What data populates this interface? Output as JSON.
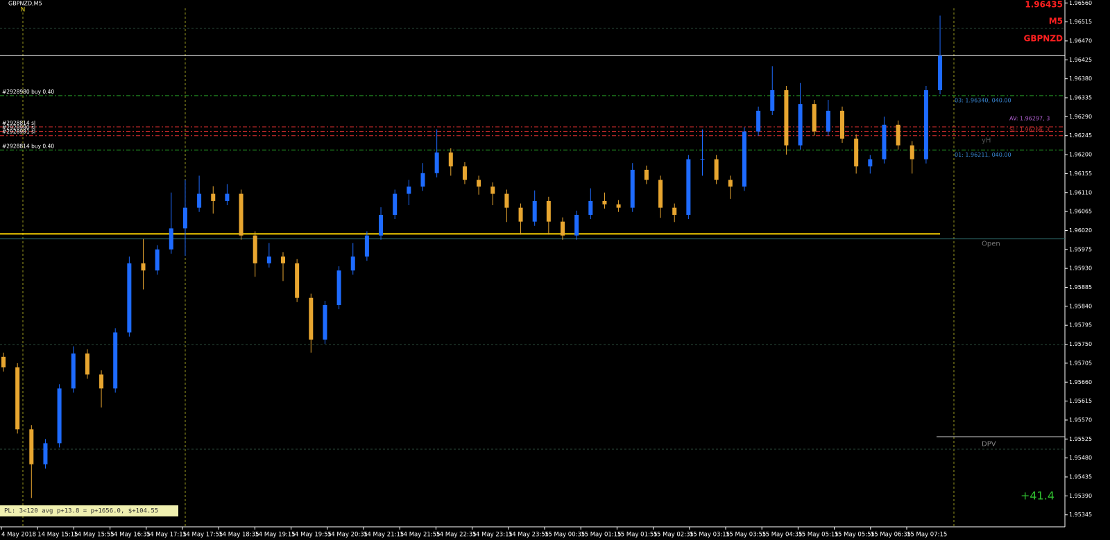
{
  "chart_data": {
    "type": "candlestick",
    "title": "GBPNZD,M5",
    "price_label": "1.96435",
    "timeframe_label": "M5",
    "symbol_label": "GBPNZD",
    "marker_text": "N",
    "profit_text": "+41.4",
    "status_text": "PL: 3<120 avg p+13.8 = p+1656.0, $+104.55",
    "ylim": [
      1.95333,
      1.96567
    ],
    "yticks": [
      {
        "value": 1.9656,
        "label": "1.96560"
      },
      1.96515,
      {
        "value": 1.9647,
        "label": "1.96470"
      },
      1.96425,
      {
        "value": 1.9638,
        "label": "1.96380"
      },
      1.96335,
      {
        "value": 1.9629,
        "label": "1.96290"
      },
      1.96245,
      {
        "value": 1.962,
        "label": "1.96200"
      },
      1.96155,
      {
        "value": 1.9611,
        "label": "1.96110"
      },
      1.96065,
      {
        "value": 1.9602,
        "label": "1.96020"
      },
      1.95975,
      {
        "value": 1.9593,
        "label": "1.95930"
      },
      1.95885,
      {
        "value": 1.9584,
        "label": "1.95840"
      },
      1.95795,
      {
        "value": 1.9575,
        "label": "1.95750"
      },
      1.95705,
      {
        "value": 1.9566,
        "label": "1.95660"
      },
      1.95615,
      {
        "value": 1.9557,
        "label": "1.95570"
      },
      1.95525,
      {
        "value": 1.9548,
        "label": "1.95480"
      },
      1.95435,
      {
        "value": 1.9539,
        "label": "1.95390"
      },
      1.95345
    ],
    "categories": [
      "4 May 2018",
      "14 May 15:15",
      "14 May 15:55",
      "14 May 16:35",
      "14 May 17:15",
      "14 May 17:55",
      "14 May 18:35",
      "14 May 19:15",
      "14 May 19:55",
      "14 May 20:35",
      "14 May 21:15",
      "14 May 21:55",
      "14 May 22:35",
      "14 May 23:15",
      "14 May 23:55",
      "15 May 00:35",
      "15 May 01:15",
      "15 May 01:55",
      "15 May 02:35",
      "15 May 03:15",
      "15 May 03:55",
      "15 May 04:35",
      "15 May 05:15",
      "15 May 05:55",
      "15 May 06:35",
      "15 May 07:15"
    ],
    "bull_color": "#1e6bff",
    "bear_color": "#e8a630",
    "open": [
      1.9572,
      1.95695,
      1.95548,
      1.95465,
      1.95515,
      1.95645,
      1.95728,
      1.95678,
      1.95645,
      1.95778,
      1.95942,
      1.95925,
      1.95975,
      1.96025,
      1.96074,
      1.96107,
      1.9609,
      1.96107,
      1.96008,
      1.95942,
      1.95958,
      1.95942,
      1.9586,
      1.95761,
      1.95843,
      1.95925,
      1.95958,
      1.96008,
      1.96057,
      1.96107,
      1.96124,
      1.96156,
      1.96205,
      1.96172,
      1.9614,
      1.96124,
      1.96107,
      1.96074,
      1.96041,
      1.9609,
      1.96041,
      1.96008,
      1.96057,
      1.9609,
      1.96082,
      1.96074,
      1.96164,
      1.9614,
      1.96074,
      1.96057,
      1.96189,
      1.96189,
      1.9614,
      1.96124,
      1.96255,
      1.96304,
      1.96353,
      1.96222,
      1.9632,
      1.96255,
      1.96304,
      1.96238,
      1.96172,
      1.96189,
      1.96271,
      1.96222,
      1.96189,
      1.96353
    ],
    "high": [
      1.9573,
      1.95705,
      1.95558,
      1.95525,
      1.95655,
      1.95745,
      1.95738,
      1.95688,
      1.95788,
      1.95958,
      1.96,
      1.95985,
      1.9611,
      1.9614,
      1.9615,
      1.96125,
      1.9613,
      1.96117,
      1.96018,
      1.9599,
      1.95968,
      1.95952,
      1.9587,
      1.95853,
      1.95935,
      1.9599,
      1.96018,
      1.96075,
      1.96117,
      1.9614,
      1.9618,
      1.9626,
      1.96215,
      1.96182,
      1.9615,
      1.96134,
      1.96117,
      1.96084,
      1.96115,
      1.961,
      1.96051,
      1.96067,
      1.9612,
      1.9611,
      1.96092,
      1.9618,
      1.96174,
      1.9615,
      1.96084,
      1.96199,
      1.9626,
      1.96199,
      1.9615,
      1.96265,
      1.96314,
      1.9641,
      1.96363,
      1.9637,
      1.9633,
      1.9633,
      1.96314,
      1.96248,
      1.96199,
      1.9629,
      1.96281,
      1.96232,
      1.96363,
      1.9653
    ],
    "low": [
      1.95685,
      1.95538,
      1.95385,
      1.95455,
      1.95505,
      1.95635,
      1.95668,
      1.956,
      1.95635,
      1.95768,
      1.9588,
      1.95915,
      1.95965,
      1.9596,
      1.96064,
      1.9606,
      1.9608,
      1.95998,
      1.9591,
      1.95932,
      1.959,
      1.9585,
      1.9573,
      1.95751,
      1.95833,
      1.95915,
      1.95948,
      1.95998,
      1.96047,
      1.9608,
      1.96114,
      1.96146,
      1.9615,
      1.9613,
      1.96105,
      1.9608,
      1.9604,
      1.9601,
      1.96031,
      1.9601,
      1.95998,
      1.95998,
      1.96047,
      1.96072,
      1.96064,
      1.96064,
      1.9613,
      1.9605,
      1.9604,
      1.96047,
      1.9615,
      1.9613,
      1.96095,
      1.96114,
      1.96245,
      1.96294,
      1.962,
      1.96212,
      1.96245,
      1.96245,
      1.96228,
      1.96155,
      1.96155,
      1.96179,
      1.96212,
      1.96155,
      1.96179,
      1.96343
    ],
    "close": [
      1.95695,
      1.95548,
      1.95465,
      1.95515,
      1.95645,
      1.95728,
      1.95678,
      1.95645,
      1.95778,
      1.95942,
      1.95925,
      1.95975,
      1.96025,
      1.96074,
      1.96107,
      1.9609,
      1.96107,
      1.96008,
      1.95942,
      1.95958,
      1.95942,
      1.9586,
      1.95761,
      1.95843,
      1.95925,
      1.95958,
      1.96008,
      1.96057,
      1.96107,
      1.96124,
      1.96156,
      1.96205,
      1.96172,
      1.9614,
      1.96124,
      1.96107,
      1.96074,
      1.96041,
      1.9609,
      1.96041,
      1.96008,
      1.96057,
      1.9609,
      1.96082,
      1.96074,
      1.96164,
      1.9614,
      1.96074,
      1.96057,
      1.96189,
      1.96189,
      1.9614,
      1.96124,
      1.96255,
      1.96304,
      1.96353,
      1.96222,
      1.9632,
      1.96255,
      1.96304,
      1.96238,
      1.96172,
      1.96189,
      1.96271,
      1.96222,
      1.96189,
      1.96353,
      1.96435
    ],
    "levels": [
      {
        "value": 1.96435,
        "color": "#ffffff",
        "label": null
      },
      {
        "value": 1.9634,
        "color": "#2bb52b",
        "label": "#2928980 buy 0.40"
      },
      {
        "value": 1.96266,
        "color": "#e03030",
        "label": "#2928814 sl"
      },
      {
        "value": 1.96255,
        "color": "#e03030",
        "label": "#2928980 sl"
      },
      {
        "value": 1.96245,
        "color": "#e03030",
        "label": "#2928981 sl"
      },
      {
        "value": 1.96211,
        "color": "#2bb52b",
        "label": "#2928814 buy 0.40"
      },
      {
        "value": 1.96012,
        "color": "#ffd700",
        "label": null
      },
      {
        "value": 1.96,
        "color": "#2f6f6f",
        "label": null
      }
    ],
    "right_notes": [
      {
        "value": 1.9634,
        "text": "03: 1.96340, 040.00",
        "color": "#3a8ad8"
      },
      {
        "value": 1.96211,
        "text": "01: 1.96211, 040.00",
        "color": "#3a8ad8"
      },
      {
        "value": 1.96297,
        "text": "AV: 1.96297, 3",
        "color": "#b060d0"
      },
      {
        "value": 1.96266,
        "text": "SL: 1.96266, 3",
        "color": "#c03030"
      },
      {
        "value": 1.96245,
        "text": "yH",
        "color": "#555555"
      },
      {
        "value": 1.96,
        "text": "Open",
        "color": "#777777"
      },
      {
        "value": 1.95525,
        "text": "DPV",
        "color": "#888888"
      }
    ]
  }
}
